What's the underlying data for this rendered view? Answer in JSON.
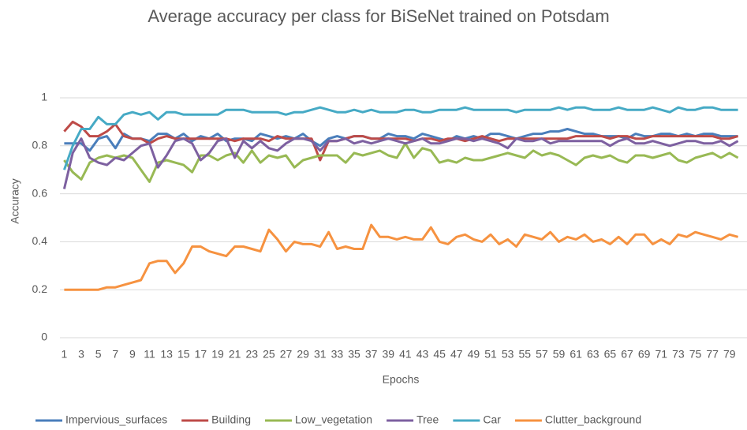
{
  "chart_data": {
    "type": "line",
    "title": "Average accuracy per class for BiSeNet trained on Potsdam",
    "x_label": "Epochs",
    "y_label": "Accuracy",
    "x": [
      1,
      2,
      3,
      4,
      5,
      6,
      7,
      8,
      9,
      10,
      11,
      12,
      13,
      14,
      15,
      16,
      17,
      18,
      19,
      20,
      21,
      22,
      23,
      24,
      25,
      26,
      27,
      28,
      29,
      30,
      31,
      32,
      33,
      34,
      35,
      36,
      37,
      38,
      39,
      40,
      41,
      42,
      43,
      44,
      45,
      46,
      47,
      48,
      49,
      50,
      51,
      52,
      53,
      54,
      55,
      56,
      57,
      58,
      59,
      60,
      61,
      62,
      63,
      64,
      65,
      66,
      67,
      68,
      69,
      70,
      71,
      72,
      73,
      74,
      75,
      76,
      77,
      78,
      79,
      80
    ],
    "xlim": [
      0.5,
      80.5
    ],
    "xticks": [
      1,
      3,
      5,
      7,
      9,
      11,
      13,
      15,
      17,
      19,
      21,
      23,
      25,
      27,
      29,
      31,
      33,
      35,
      37,
      39,
      41,
      43,
      45,
      47,
      49,
      51,
      53,
      55,
      57,
      59,
      61,
      63,
      65,
      67,
      69,
      71,
      73,
      75,
      77,
      79
    ],
    "ylim": [
      0,
      1
    ],
    "yticks": [
      0,
      0.2,
      0.4,
      0.6,
      0.8,
      1
    ],
    "grid": true,
    "legend": "bottom",
    "series": [
      {
        "name": "Impervious_surfaces",
        "color": "#4a7ebb",
        "values": [
          0.81,
          0.81,
          0.81,
          0.78,
          0.83,
          0.84,
          0.79,
          0.85,
          0.83,
          0.83,
          0.82,
          0.85,
          0.85,
          0.83,
          0.85,
          0.82,
          0.84,
          0.83,
          0.85,
          0.82,
          0.83,
          0.83,
          0.82,
          0.85,
          0.84,
          0.83,
          0.84,
          0.83,
          0.85,
          0.82,
          0.8,
          0.83,
          0.84,
          0.83,
          0.84,
          0.84,
          0.83,
          0.83,
          0.85,
          0.84,
          0.84,
          0.83,
          0.85,
          0.84,
          0.83,
          0.82,
          0.84,
          0.83,
          0.84,
          0.83,
          0.85,
          0.85,
          0.84,
          0.83,
          0.84,
          0.85,
          0.85,
          0.86,
          0.86,
          0.87,
          0.86,
          0.85,
          0.85,
          0.84,
          0.84,
          0.84,
          0.83,
          0.85,
          0.84,
          0.84,
          0.85,
          0.85,
          0.84,
          0.85,
          0.84,
          0.85,
          0.85,
          0.84,
          0.84,
          0.84
        ]
      },
      {
        "name": "Building",
        "color": "#be4b48",
        "values": [
          0.86,
          0.9,
          0.88,
          0.84,
          0.84,
          0.86,
          0.89,
          0.84,
          0.83,
          0.83,
          0.81,
          0.83,
          0.84,
          0.83,
          0.83,
          0.83,
          0.83,
          0.83,
          0.83,
          0.83,
          0.82,
          0.83,
          0.83,
          0.83,
          0.82,
          0.84,
          0.83,
          0.83,
          0.83,
          0.83,
          0.74,
          0.82,
          0.82,
          0.83,
          0.84,
          0.84,
          0.83,
          0.83,
          0.83,
          0.83,
          0.83,
          0.82,
          0.83,
          0.83,
          0.82,
          0.83,
          0.83,
          0.82,
          0.83,
          0.84,
          0.83,
          0.82,
          0.83,
          0.83,
          0.83,
          0.83,
          0.83,
          0.83,
          0.83,
          0.83,
          0.84,
          0.84,
          0.84,
          0.84,
          0.83,
          0.84,
          0.84,
          0.83,
          0.83,
          0.84,
          0.84,
          0.84,
          0.84,
          0.84,
          0.84,
          0.84,
          0.84,
          0.83,
          0.83,
          0.84
        ]
      },
      {
        "name": "Low_vegetation",
        "color": "#98b954",
        "values": [
          0.74,
          0.69,
          0.66,
          0.73,
          0.75,
          0.76,
          0.75,
          0.76,
          0.75,
          0.7,
          0.65,
          0.73,
          0.74,
          0.73,
          0.72,
          0.69,
          0.76,
          0.76,
          0.74,
          0.76,
          0.77,
          0.73,
          0.78,
          0.73,
          0.76,
          0.75,
          0.76,
          0.71,
          0.74,
          0.75,
          0.76,
          0.76,
          0.76,
          0.73,
          0.77,
          0.76,
          0.77,
          0.78,
          0.76,
          0.75,
          0.81,
          0.75,
          0.79,
          0.78,
          0.73,
          0.74,
          0.73,
          0.75,
          0.74,
          0.74,
          0.75,
          0.76,
          0.77,
          0.76,
          0.75,
          0.78,
          0.76,
          0.77,
          0.76,
          0.74,
          0.72,
          0.75,
          0.76,
          0.75,
          0.76,
          0.74,
          0.73,
          0.76,
          0.76,
          0.75,
          0.76,
          0.77,
          0.74,
          0.73,
          0.75,
          0.76,
          0.77,
          0.75,
          0.77,
          0.75
        ]
      },
      {
        "name": "Tree",
        "color": "#7d60a0",
        "values": [
          0.62,
          0.77,
          0.83,
          0.75,
          0.73,
          0.72,
          0.75,
          0.74,
          0.77,
          0.8,
          0.81,
          0.71,
          0.76,
          0.82,
          0.83,
          0.81,
          0.74,
          0.77,
          0.82,
          0.83,
          0.75,
          0.82,
          0.79,
          0.82,
          0.79,
          0.78,
          0.81,
          0.83,
          0.83,
          0.82,
          0.78,
          0.82,
          0.82,
          0.83,
          0.81,
          0.82,
          0.81,
          0.82,
          0.83,
          0.82,
          0.81,
          0.82,
          0.83,
          0.81,
          0.81,
          0.82,
          0.83,
          0.83,
          0.82,
          0.83,
          0.82,
          0.81,
          0.79,
          0.83,
          0.82,
          0.82,
          0.83,
          0.81,
          0.82,
          0.82,
          0.82,
          0.82,
          0.82,
          0.82,
          0.8,
          0.82,
          0.83,
          0.81,
          0.81,
          0.82,
          0.81,
          0.8,
          0.81,
          0.82,
          0.82,
          0.81,
          0.81,
          0.82,
          0.8,
          0.82
        ]
      },
      {
        "name": "Car",
        "color": "#46aac5",
        "values": [
          0.7,
          0.8,
          0.87,
          0.87,
          0.92,
          0.89,
          0.89,
          0.93,
          0.94,
          0.93,
          0.94,
          0.91,
          0.94,
          0.94,
          0.93,
          0.93,
          0.93,
          0.93,
          0.93,
          0.95,
          0.95,
          0.95,
          0.94,
          0.94,
          0.94,
          0.94,
          0.93,
          0.94,
          0.94,
          0.95,
          0.96,
          0.95,
          0.94,
          0.94,
          0.95,
          0.94,
          0.95,
          0.94,
          0.94,
          0.94,
          0.95,
          0.95,
          0.94,
          0.94,
          0.95,
          0.95,
          0.95,
          0.96,
          0.95,
          0.95,
          0.95,
          0.95,
          0.95,
          0.94,
          0.95,
          0.95,
          0.95,
          0.95,
          0.96,
          0.95,
          0.96,
          0.96,
          0.95,
          0.95,
          0.95,
          0.96,
          0.95,
          0.95,
          0.95,
          0.96,
          0.95,
          0.94,
          0.96,
          0.95,
          0.95,
          0.96,
          0.96,
          0.95,
          0.95,
          0.95
        ]
      },
      {
        "name": "Clutter_background",
        "color": "#f69240",
        "values": [
          0.2,
          0.2,
          0.2,
          0.2,
          0.2,
          0.21,
          0.21,
          0.22,
          0.23,
          0.24,
          0.31,
          0.32,
          0.32,
          0.27,
          0.31,
          0.38,
          0.38,
          0.36,
          0.35,
          0.34,
          0.38,
          0.38,
          0.37,
          0.36,
          0.45,
          0.41,
          0.36,
          0.4,
          0.39,
          0.39,
          0.38,
          0.44,
          0.37,
          0.38,
          0.37,
          0.37,
          0.47,
          0.42,
          0.42,
          0.41,
          0.42,
          0.41,
          0.41,
          0.46,
          0.4,
          0.39,
          0.42,
          0.43,
          0.41,
          0.4,
          0.43,
          0.39,
          0.41,
          0.38,
          0.43,
          0.42,
          0.41,
          0.44,
          0.4,
          0.42,
          0.41,
          0.43,
          0.4,
          0.41,
          0.39,
          0.42,
          0.39,
          0.43,
          0.43,
          0.39,
          0.41,
          0.39,
          0.43,
          0.42,
          0.44,
          0.43,
          0.42,
          0.41,
          0.43,
          0.42
        ]
      }
    ]
  }
}
